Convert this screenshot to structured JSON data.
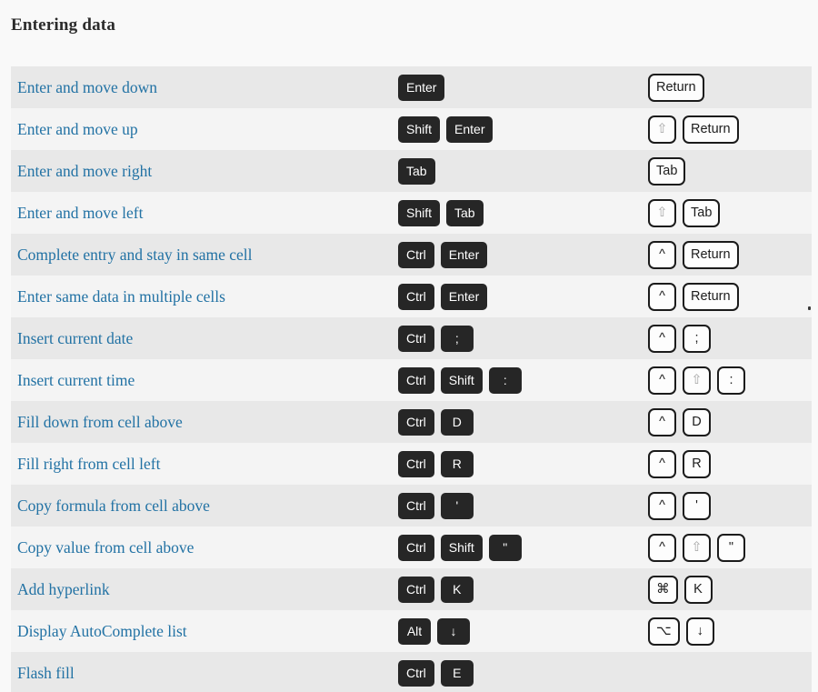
{
  "section": {
    "title": "Entering data"
  },
  "colors": {
    "page_background": "#f9f9f9",
    "row_odd": "#e8e8e8",
    "row_even": "#f4f4f4",
    "link_text": "#2272a4",
    "title_text": "#2b2b2b",
    "windows_key_bg": "#262626",
    "windows_key_text": "#ffffff",
    "mac_key_bg": "#fdfdfd",
    "mac_key_border": "#1b1b1b",
    "mac_key_muted_glyph": "#a6a6a6"
  },
  "shortcuts": [
    {
      "label": "Enter and move down",
      "win": [
        "Enter"
      ],
      "mac": [
        {
          "key": "Return"
        }
      ]
    },
    {
      "label": "Enter and move up",
      "win": [
        "Shift",
        "Enter"
      ],
      "mac": [
        {
          "key": "⇧",
          "muted": true
        },
        {
          "key": "Return"
        }
      ]
    },
    {
      "label": "Enter and move right",
      "win": [
        "Tab"
      ],
      "mac": [
        {
          "key": "Tab"
        }
      ]
    },
    {
      "label": "Enter and move left",
      "win": [
        "Shift",
        "Tab"
      ],
      "mac": [
        {
          "key": "⇧",
          "muted": true
        },
        {
          "key": "Tab"
        }
      ]
    },
    {
      "label": "Complete entry and stay in same cell",
      "win": [
        "Ctrl",
        "Enter"
      ],
      "mac": [
        {
          "key": "^"
        },
        {
          "key": "Return"
        }
      ]
    },
    {
      "label": "Enter same data in multiple cells",
      "win": [
        "Ctrl",
        "Enter"
      ],
      "mac": [
        {
          "key": "^"
        },
        {
          "key": "Return"
        }
      ]
    },
    {
      "label": "Insert current date",
      "win": [
        "Ctrl",
        ";"
      ],
      "mac": [
        {
          "key": "^"
        },
        {
          "key": ";"
        }
      ]
    },
    {
      "label": "Insert current time",
      "win": [
        "Ctrl",
        "Shift",
        ":"
      ],
      "mac": [
        {
          "key": "^"
        },
        {
          "key": "⇧",
          "muted": true
        },
        {
          "key": ":"
        }
      ]
    },
    {
      "label": "Fill down from cell above",
      "win": [
        "Ctrl",
        "D"
      ],
      "mac": [
        {
          "key": "^"
        },
        {
          "key": "D"
        }
      ]
    },
    {
      "label": "Fill right from cell left",
      "win": [
        "Ctrl",
        "R"
      ],
      "mac": [
        {
          "key": "^"
        },
        {
          "key": "R"
        }
      ]
    },
    {
      "label": "Copy formula from cell above",
      "win": [
        "Ctrl",
        "'"
      ],
      "mac": [
        {
          "key": "^"
        },
        {
          "key": "'"
        }
      ]
    },
    {
      "label": "Copy value from cell above",
      "win": [
        "Ctrl",
        "Shift",
        "\""
      ],
      "mac": [
        {
          "key": "^"
        },
        {
          "key": "⇧",
          "muted": true
        },
        {
          "key": "\""
        }
      ]
    },
    {
      "label": "Add hyperlink",
      "win": [
        "Ctrl",
        "K"
      ],
      "mac": [
        {
          "key": "⌘"
        },
        {
          "key": "K"
        }
      ]
    },
    {
      "label": "Display AutoComplete list",
      "win": [
        "Alt",
        "↓"
      ],
      "mac": [
        {
          "key": "⌥"
        },
        {
          "key": "↓"
        }
      ]
    },
    {
      "label": "Flash fill",
      "win": [
        "Ctrl",
        "E"
      ],
      "mac": []
    }
  ]
}
